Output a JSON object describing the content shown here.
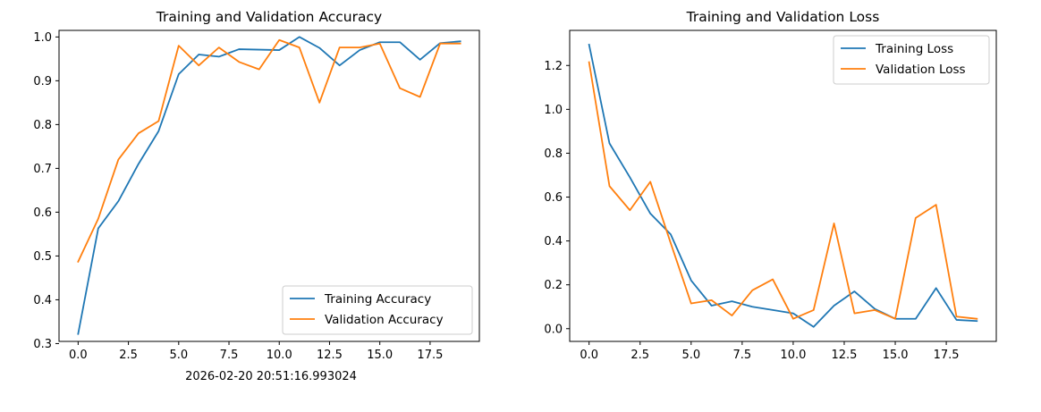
{
  "caption": "2026-02-20 20:51:16.993024",
  "colors": {
    "training": "#1f77b4",
    "validation": "#ff7f0e"
  },
  "chart_data": [
    {
      "type": "line",
      "title": "Training and Validation Accuracy",
      "xlabel": "",
      "ylabel": "",
      "x": [
        0,
        1,
        2,
        3,
        4,
        5,
        6,
        7,
        8,
        9,
        10,
        11,
        12,
        13,
        14,
        15,
        16,
        17,
        18,
        19
      ],
      "xlim": [
        -0.95,
        19.95
      ],
      "ylim": [
        0.305,
        1.015
      ],
      "xticks": [
        0,
        2.5,
        5,
        7.5,
        10,
        12.5,
        15,
        17.5
      ],
      "xtick_labels": [
        "0.0",
        "2.5",
        "5.0",
        "7.5",
        "10.0",
        "12.5",
        "15.0",
        "17.5"
      ],
      "yticks": [
        0.3,
        0.4,
        0.5,
        0.6,
        0.7,
        0.8,
        0.9,
        1.0
      ],
      "ytick_labels": [
        "0.3",
        "0.4",
        "0.5",
        "0.6",
        "0.7",
        "0.8",
        "0.9",
        "1.0"
      ],
      "legend_position": "lower-right",
      "series": [
        {
          "name": "Training Accuracy",
          "color": "#1f77b4",
          "values": [
            0.322,
            0.563,
            0.625,
            0.71,
            0.785,
            0.915,
            0.96,
            0.955,
            0.972,
            0.971,
            0.97,
            1.0,
            0.975,
            0.935,
            0.97,
            0.988,
            0.988,
            0.948,
            0.986,
            0.99
          ]
        },
        {
          "name": "Validation Accuracy",
          "color": "#ff7f0e",
          "values": [
            0.487,
            0.585,
            0.72,
            0.78,
            0.808,
            0.98,
            0.935,
            0.976,
            0.943,
            0.926,
            0.993,
            0.976,
            0.85,
            0.976,
            0.976,
            0.985,
            0.883,
            0.863,
            0.985,
            0.985
          ]
        }
      ]
    },
    {
      "type": "line",
      "title": "Training and Validation Loss",
      "xlabel": "",
      "ylabel": "",
      "x": [
        0,
        1,
        2,
        3,
        4,
        5,
        6,
        7,
        8,
        9,
        10,
        11,
        12,
        13,
        14,
        15,
        16,
        17,
        18,
        19
      ],
      "xlim": [
        -0.95,
        19.95
      ],
      "ylim": [
        -0.058,
        1.36
      ],
      "xticks": [
        0,
        2.5,
        5,
        7.5,
        10,
        12.5,
        15,
        17.5
      ],
      "xtick_labels": [
        "0.0",
        "2.5",
        "5.0",
        "7.5",
        "10.0",
        "12.5",
        "15.0",
        "17.5"
      ],
      "yticks": [
        0.0,
        0.2,
        0.4,
        0.6,
        0.8,
        1.0,
        1.2
      ],
      "ytick_labels": [
        "0.0",
        "0.2",
        "0.4",
        "0.6",
        "0.8",
        "1.0",
        "1.2"
      ],
      "legend_position": "upper-right",
      "series": [
        {
          "name": "Training Loss",
          "color": "#1f77b4",
          "values": [
            1.295,
            0.845,
            0.69,
            0.525,
            0.43,
            0.22,
            0.105,
            0.125,
            0.1,
            0.085,
            0.07,
            0.008,
            0.105,
            0.17,
            0.09,
            0.045,
            0.045,
            0.185,
            0.04,
            0.035
          ]
        },
        {
          "name": "Validation Loss",
          "color": "#ff7f0e",
          "values": [
            1.215,
            0.65,
            0.54,
            0.67,
            0.39,
            0.115,
            0.13,
            0.06,
            0.175,
            0.225,
            0.045,
            0.085,
            0.48,
            0.07,
            0.085,
            0.045,
            0.505,
            0.565,
            0.055,
            0.045
          ]
        }
      ]
    }
  ]
}
